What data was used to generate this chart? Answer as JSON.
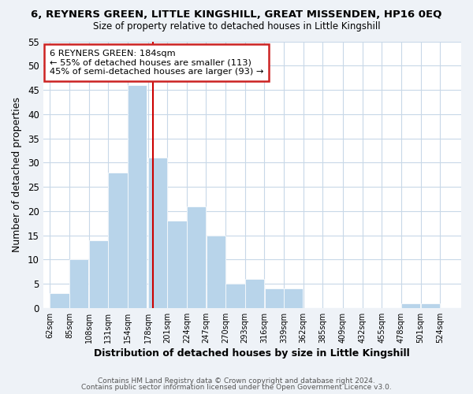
{
  "title": "6, REYNERS GREEN, LITTLE KINGSHILL, GREAT MISSENDEN, HP16 0EQ",
  "subtitle": "Size of property relative to detached houses in Little Kingshill",
  "xlabel": "Distribution of detached houses by size in Little Kingshill",
  "ylabel": "Number of detached properties",
  "bar_left_edges": [
    62,
    85,
    108,
    131,
    154,
    178,
    201,
    224,
    247,
    270,
    293,
    316,
    339,
    362,
    385,
    409,
    432,
    455,
    478,
    501
  ],
  "bar_heights": [
    3,
    10,
    14,
    28,
    46,
    31,
    18,
    21,
    15,
    5,
    6,
    4,
    4,
    0,
    0,
    0,
    0,
    0,
    1,
    1
  ],
  "bin_width": 23,
  "bar_color": "#b8d4ea",
  "bar_edge_color": "#ffffff",
  "reference_line_x": 184,
  "reference_line_color": "#cc0000",
  "ylim": [
    0,
    55
  ],
  "yticks": [
    0,
    5,
    10,
    15,
    20,
    25,
    30,
    35,
    40,
    45,
    50,
    55
  ],
  "x_tick_labels": [
    "62sqm",
    "85sqm",
    "108sqm",
    "131sqm",
    "154sqm",
    "178sqm",
    "201sqm",
    "224sqm",
    "247sqm",
    "270sqm",
    "293sqm",
    "316sqm",
    "339sqm",
    "362sqm",
    "385sqm",
    "409sqm",
    "432sqm",
    "455sqm",
    "478sqm",
    "501sqm",
    "524sqm"
  ],
  "x_tick_positions": [
    62,
    85,
    108,
    131,
    154,
    178,
    201,
    224,
    247,
    270,
    293,
    316,
    339,
    362,
    385,
    409,
    432,
    455,
    478,
    501,
    524
  ],
  "annotation_title": "6 REYNERS GREEN: 184sqm",
  "annotation_line1": "← 55% of detached houses are smaller (113)",
  "annotation_line2": "45% of semi-detached houses are larger (93) →",
  "bg_color": "#eef2f7",
  "plot_bg_color": "#ffffff",
  "grid_color": "#c8d8e8",
  "footer_line1": "Contains HM Land Registry data © Crown copyright and database right 2024.",
  "footer_line2": "Contains public sector information licensed under the Open Government Licence v3.0."
}
